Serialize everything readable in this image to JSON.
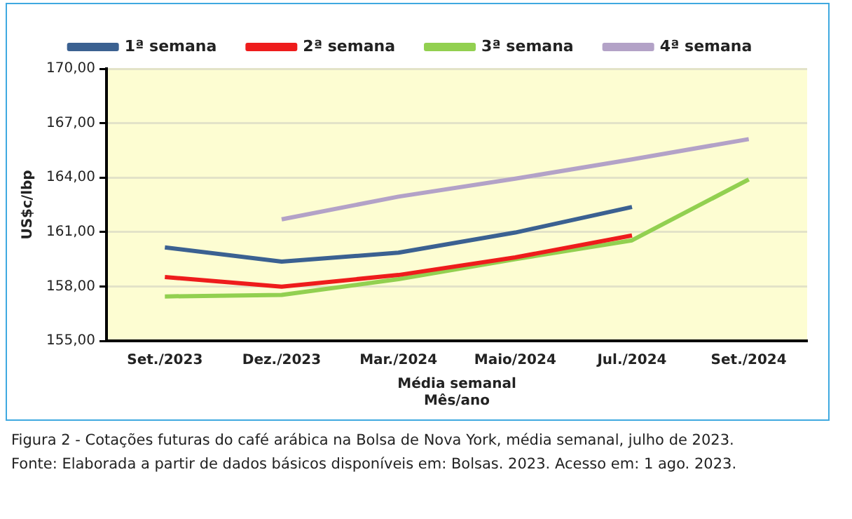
{
  "chart_data": {
    "type": "line",
    "xlabel": "Média semanal\nMês/ano",
    "ylabel": "US$c/lbp",
    "categories": [
      "Set./2023",
      "Dez./2023",
      "Mar./2024",
      "Maio/2024",
      "Jul./2024",
      "Set./2024"
    ],
    "series": [
      {
        "name": "1ª semana",
        "color": "#3b6191",
        "values": [
          160.15,
          159.37,
          159.86,
          160.97,
          162.38,
          null
        ]
      },
      {
        "name": "2ª semana",
        "color": "#ee1c1c",
        "values": [
          158.52,
          157.99,
          158.63,
          159.6,
          160.81,
          null
        ]
      },
      {
        "name": "3ª semana",
        "color": "#92d050",
        "values": [
          157.45,
          157.53,
          158.4,
          159.5,
          160.54,
          163.9
        ]
      },
      {
        "name": "4ª semana",
        "color": "#b3a2c7",
        "values": [
          null,
          161.7,
          162.95,
          163.94,
          165.0,
          166.12
        ]
      }
    ],
    "ylim": [
      155,
      170
    ],
    "yticks": [
      {
        "value": 155,
        "label": "155,00"
      },
      {
        "value": 158,
        "label": "158,00"
      },
      {
        "value": 161,
        "label": "161,00"
      },
      {
        "value": 164,
        "label": "164,00"
      },
      {
        "value": 167,
        "label": "167,00"
      },
      {
        "value": 170,
        "label": "170,00"
      }
    ],
    "grid": "y",
    "legend": "top",
    "marker": "none",
    "line_style": "solid",
    "annotations": [
      "Figura 2 - Cotações futuras do café arábica na Bolsa de Nova York, média semanal, julho de 2023.",
      "Fonte: Elaborada a partir de dados básicos disponíveis em: Bolsas. 2023. Acesso em: 1 ago. 2023."
    ]
  }
}
